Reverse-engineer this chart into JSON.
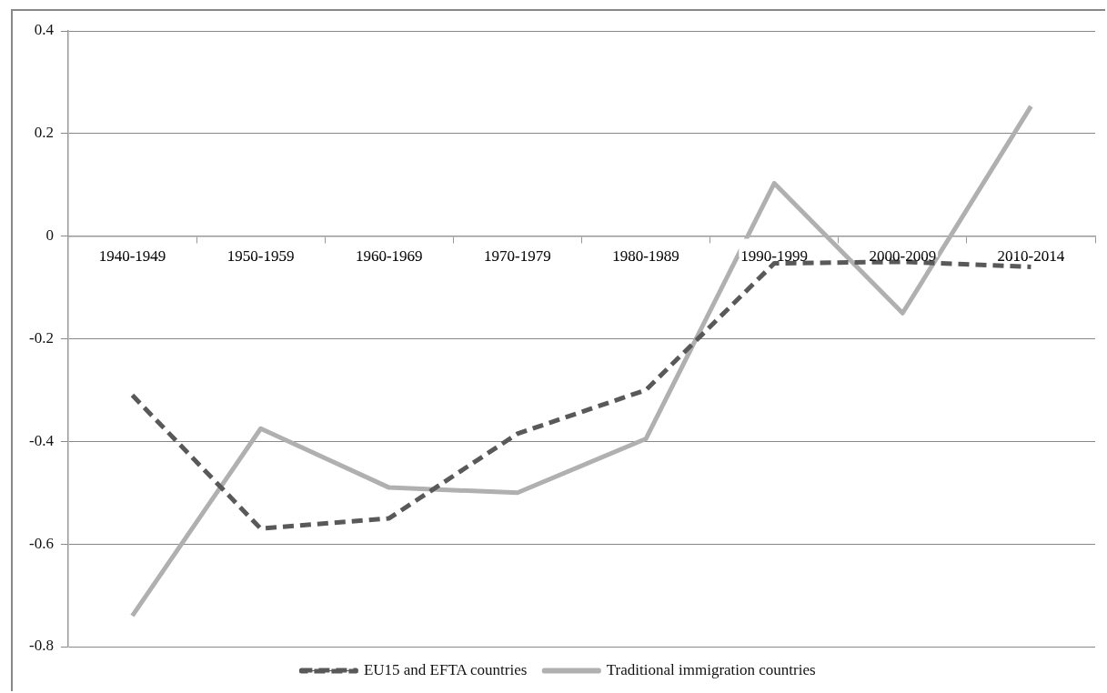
{
  "chart_data": {
    "type": "line",
    "categories": [
      "1940-1949",
      "1950-1959",
      "1960-1969",
      "1970-1979",
      "1980-1989",
      "1990-1999",
      "2000-2009",
      "2010-2014"
    ],
    "series": [
      {
        "name": "EU15 and EFTA countries",
        "color": "#595959",
        "line_style": "dashed",
        "values": [
          -0.31,
          -0.57,
          -0.55,
          -0.385,
          -0.3,
          -0.053,
          -0.05,
          -0.06
        ]
      },
      {
        "name": "Traditional immigration countries",
        "color": "#b0b0b0",
        "line_style": "solid",
        "values": [
          -0.74,
          -0.375,
          -0.49,
          -0.5,
          -0.395,
          0.103,
          -0.15,
          0.253
        ]
      }
    ],
    "ylim": [
      -0.8,
      0.4
    ],
    "yticks": [
      -0.8,
      -0.6,
      -0.4,
      -0.2,
      0,
      0.2,
      0.4
    ],
    "grid": "y",
    "legend": "bottom",
    "marker": "none"
  }
}
